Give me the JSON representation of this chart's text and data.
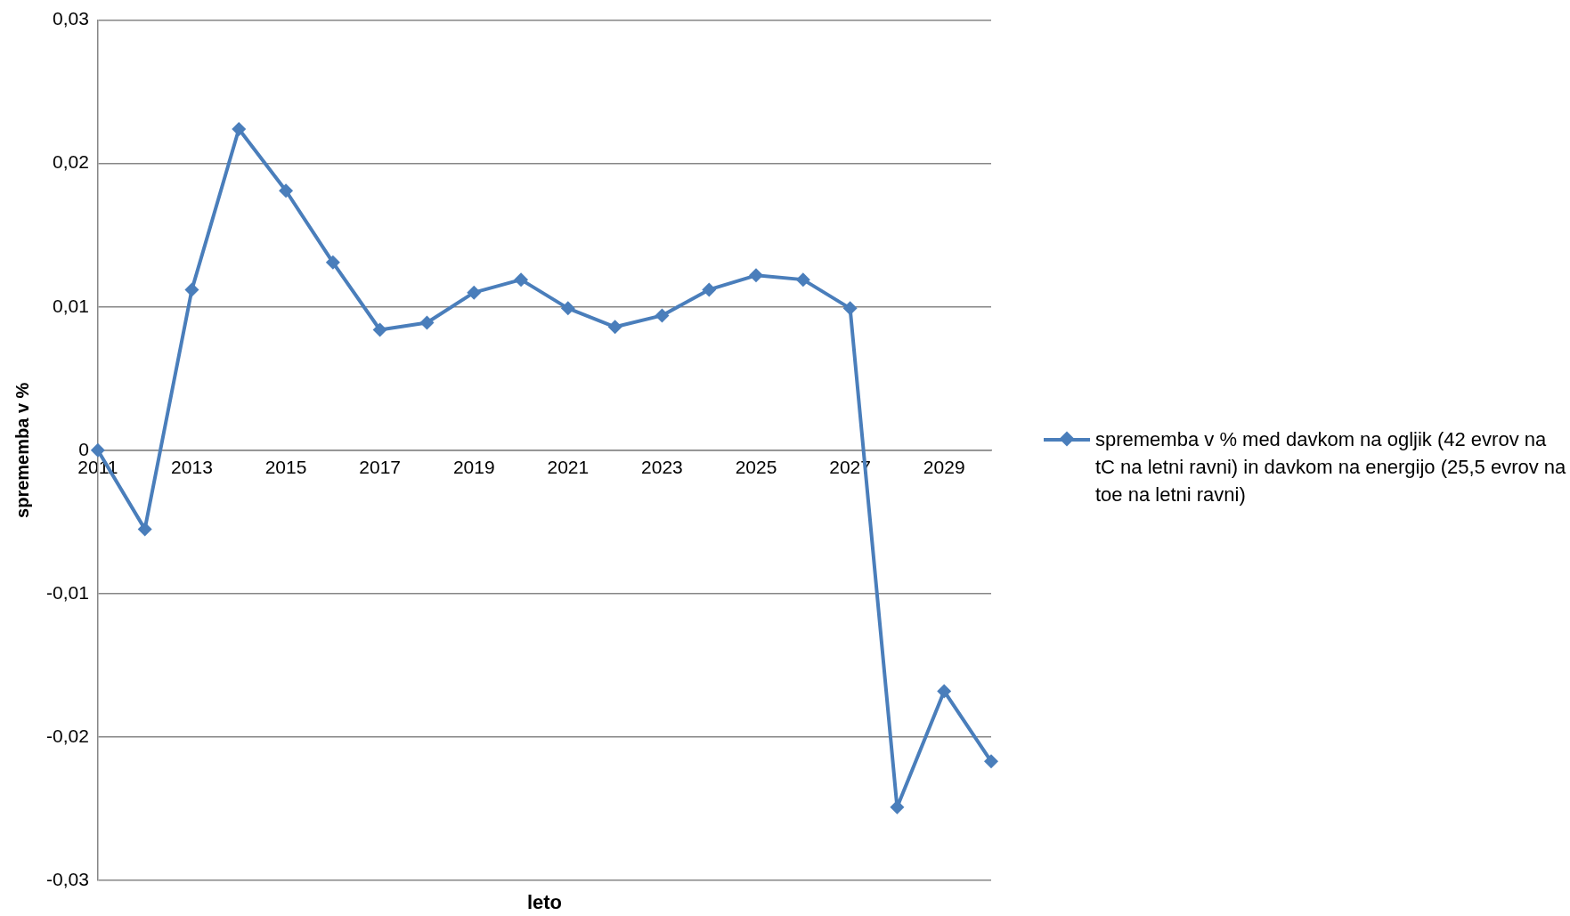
{
  "chart_data": {
    "type": "line",
    "xlabel": "leto",
    "ylabel": "sprememba v %",
    "categories": [
      "2011",
      null,
      "2013",
      null,
      "2015",
      null,
      "2017",
      null,
      "2019",
      null,
      "2021",
      null,
      "2023",
      null,
      "2025",
      null,
      "2027",
      null,
      "2029",
      null
    ],
    "series": [
      {
        "name": "sprememba v % med davkom na ogljik (42 evrov na tC na letni ravni)  in davkom na energijo (25,5 evrov na toe na letni ravni)",
        "color": "#4a7ebb",
        "values": [
          0,
          -0.0055,
          0.0112,
          0.0224,
          0.0181,
          0.0131,
          0.0084,
          0.0089,
          0.011,
          0.0119,
          0.0099,
          0.0086,
          0.0094,
          0.0112,
          0.0122,
          0.0119,
          0.0099,
          -0.0249,
          -0.0168,
          -0.0217
        ]
      }
    ],
    "ylim": [
      -0.03,
      0.03
    ],
    "yticks": [
      {
        "value": -0.03,
        "label": "-0,03"
      },
      {
        "value": -0.02,
        "label": "-0,02"
      },
      {
        "value": -0.01,
        "label": "-0,01"
      },
      {
        "value": 0,
        "label": "0"
      },
      {
        "value": 0.01,
        "label": "0,01"
      },
      {
        "value": 0.02,
        "label": "0,02"
      },
      {
        "value": 0.03,
        "label": "0,03"
      }
    ],
    "grid": "y",
    "legend": "right",
    "marker": "diamond",
    "line_style": "solid"
  }
}
